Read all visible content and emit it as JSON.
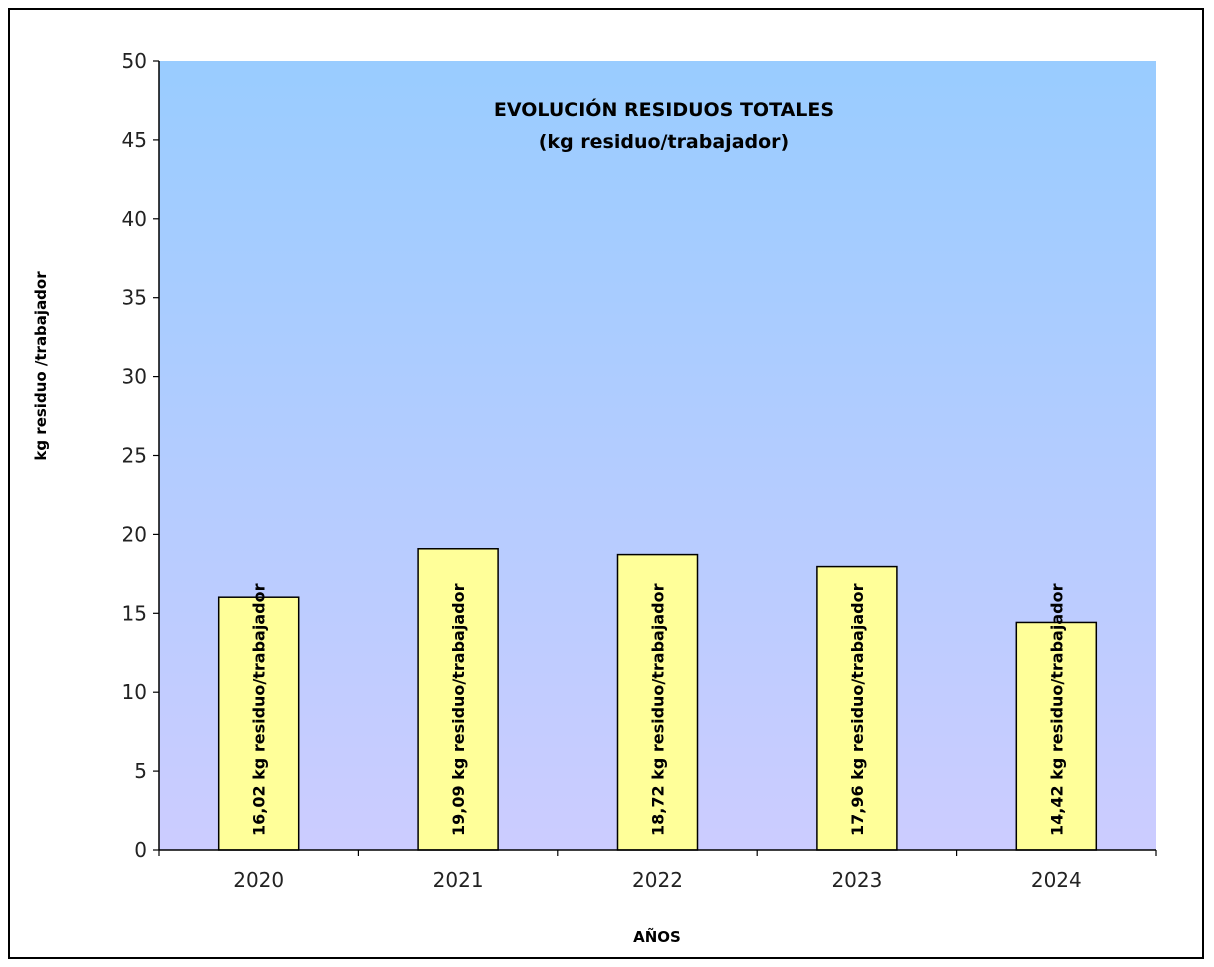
{
  "chart_data": {
    "type": "bar",
    "title": "EVOLUCIÓN RESIDUOS TOTALES",
    "subtitle": "(kg residuo/trabajador)",
    "xlabel": "AÑOS",
    "ylabel": "kg residuo /trabajador",
    "categories": [
      "2020",
      "2021",
      "2022",
      "2023",
      "2024"
    ],
    "values": [
      16.02,
      19.09,
      18.72,
      17.96,
      14.42
    ],
    "data_labels": [
      "16,02 kg residuo/trabajador",
      "19,09 kg  residuo/trabajador",
      "18,72 kg  residuo/trabajador",
      "17,96 kg residuo/trabajador",
      "14,42 kg residuo/trabajador"
    ],
    "ylim": [
      0,
      50
    ],
    "yticks": [
      0,
      5,
      10,
      15,
      20,
      25,
      30,
      35,
      40,
      45,
      50
    ],
    "grid": false,
    "legend": "none",
    "colors": {
      "bar_fill": "#ffff99",
      "bar_stroke": "#000000",
      "plot_bg_top": "#99ccff",
      "plot_bg_bottom": "#ccccff"
    }
  }
}
